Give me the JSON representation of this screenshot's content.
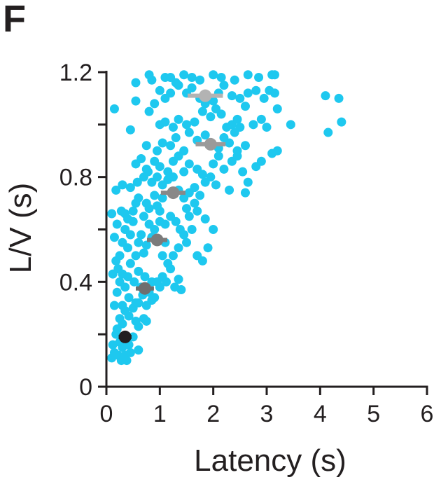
{
  "panel_label": "F",
  "chart_data": {
    "type": "scatter",
    "xlabel": "Latency (s)",
    "ylabel": "L/V (s)",
    "xlim": [
      0,
      6
    ],
    "ylim": [
      0,
      1.2
    ],
    "x_ticks": [
      0,
      1,
      2,
      3,
      4,
      5,
      6
    ],
    "x_tick_labels": [
      "0",
      "1",
      "2",
      "3",
      "4",
      "5",
      "6"
    ],
    "y_ticks": [
      0,
      0.4,
      0.8,
      1.2
    ],
    "y_tick_labels": [
      "0",
      "0.4",
      "0.8",
      "1.2"
    ],
    "grid": false,
    "colors": {
      "points": "#1ec8ef",
      "axis": "#231f20"
    },
    "series": [
      {
        "points": [
          [
            0.1,
            0.11
          ],
          [
            0.12,
            0.16
          ],
          [
            0.15,
            0.13
          ],
          [
            0.18,
            0.2
          ],
          [
            0.22,
            0.12
          ],
          [
            0.25,
            0.17
          ],
          [
            0.28,
            0.1
          ],
          [
            0.3,
            0.15
          ],
          [
            0.35,
            0.12
          ],
          [
            0.38,
            0.1
          ],
          [
            0.42,
            0.16
          ],
          [
            0.45,
            0.13
          ],
          [
            0.5,
            0.19
          ],
          [
            0.6,
            0.14
          ],
          [
            0.2,
            0.22
          ],
          [
            0.25,
            0.26
          ],
          [
            0.3,
            0.24
          ],
          [
            0.35,
            0.29
          ],
          [
            0.42,
            0.27
          ],
          [
            0.5,
            0.3
          ],
          [
            0.55,
            0.25
          ],
          [
            0.6,
            0.23
          ],
          [
            0.7,
            0.26
          ],
          [
            0.75,
            0.25
          ],
          [
            0.3,
            0.31
          ],
          [
            0.42,
            0.34
          ],
          [
            0.55,
            0.32
          ],
          [
            0.15,
            0.31
          ],
          [
            0.2,
            0.36
          ],
          [
            0.25,
            0.4
          ],
          [
            0.3,
            0.43
          ],
          [
            0.35,
            0.38
          ],
          [
            0.4,
            0.42
          ],
          [
            0.45,
            0.47
          ],
          [
            0.52,
            0.4
          ],
          [
            0.6,
            0.44
          ],
          [
            0.65,
            0.38
          ],
          [
            0.72,
            0.42
          ],
          [
            0.8,
            0.36
          ],
          [
            0.85,
            0.4
          ],
          [
            0.9,
            0.34
          ],
          [
            0.12,
            0.43
          ],
          [
            0.18,
            0.48
          ],
          [
            0.22,
            0.45
          ],
          [
            0.6,
            0.32
          ],
          [
            0.68,
            0.35
          ],
          [
            0.75,
            0.31
          ],
          [
            0.85,
            0.33
          ],
          [
            0.95,
            0.4
          ],
          [
            1.0,
            0.38
          ],
          [
            1.05,
            0.42
          ],
          [
            1.12,
            0.4
          ],
          [
            1.2,
            0.45
          ],
          [
            1.28,
            0.38
          ],
          [
            1.35,
            0.41
          ],
          [
            1.4,
            0.37
          ],
          [
            0.25,
            0.5
          ],
          [
            0.3,
            0.55
          ],
          [
            0.35,
            0.6
          ],
          [
            0.4,
            0.53
          ],
          [
            0.45,
            0.58
          ],
          [
            0.5,
            0.63
          ],
          [
            0.55,
            0.5
          ],
          [
            0.6,
            0.55
          ],
          [
            0.65,
            0.58
          ],
          [
            0.7,
            0.51
          ],
          [
            0.75,
            0.54
          ],
          [
            0.8,
            0.62
          ],
          [
            0.85,
            0.57
          ],
          [
            0.9,
            0.6
          ],
          [
            1.0,
            0.63
          ],
          [
            1.05,
            0.5
          ],
          [
            1.1,
            0.55
          ],
          [
            1.15,
            0.47
          ],
          [
            1.25,
            0.5
          ],
          [
            1.35,
            0.53
          ],
          [
            0.15,
            0.57
          ],
          [
            0.2,
            0.62
          ],
          [
            0.28,
            0.67
          ],
          [
            0.35,
            0.66
          ],
          [
            0.4,
            0.64
          ],
          [
            0.5,
            0.67
          ],
          [
            0.55,
            0.7
          ],
          [
            0.6,
            0.72
          ],
          [
            0.7,
            0.65
          ],
          [
            0.75,
            0.7
          ],
          [
            0.8,
            0.68
          ],
          [
            0.9,
            0.73
          ],
          [
            0.95,
            0.69
          ],
          [
            1.0,
            0.67
          ],
          [
            1.05,
            0.72
          ],
          [
            1.1,
            0.62
          ],
          [
            1.2,
            0.65
          ],
          [
            1.3,
            0.63
          ],
          [
            1.38,
            0.6
          ],
          [
            1.45,
            0.58
          ],
          [
            1.5,
            0.55
          ],
          [
            1.55,
            0.65
          ],
          [
            1.6,
            0.6
          ],
          [
            1.7,
            0.5
          ],
          [
            1.8,
            0.48
          ],
          [
            1.9,
            0.53
          ],
          [
            0.1,
            0.66
          ],
          [
            0.18,
            0.75
          ],
          [
            0.3,
            0.77
          ],
          [
            0.45,
            0.76
          ],
          [
            0.58,
            0.78
          ],
          [
            0.7,
            0.8
          ],
          [
            0.78,
            0.82
          ],
          [
            0.85,
            0.78
          ],
          [
            0.95,
            0.8
          ],
          [
            1.05,
            0.77
          ],
          [
            1.15,
            0.79
          ],
          [
            1.25,
            0.8
          ],
          [
            1.35,
            0.75
          ],
          [
            1.45,
            0.72
          ],
          [
            1.55,
            0.74
          ],
          [
            1.65,
            0.76
          ],
          [
            1.75,
            0.73
          ],
          [
            1.85,
            0.78
          ],
          [
            1.95,
            0.8
          ],
          [
            2.05,
            0.77
          ],
          [
            1.7,
            0.67
          ],
          [
            1.85,
            0.64
          ],
          [
            2.0,
            0.6
          ],
          [
            1.5,
            0.68
          ],
          [
            1.65,
            0.7
          ],
          [
            0.55,
            0.85
          ],
          [
            0.65,
            0.87
          ],
          [
            0.75,
            0.83
          ],
          [
            0.9,
            0.86
          ],
          [
            1.0,
            0.84
          ],
          [
            1.15,
            0.82
          ],
          [
            1.25,
            0.86
          ],
          [
            1.35,
            0.88
          ],
          [
            1.45,
            0.82
          ],
          [
            1.55,
            0.85
          ],
          [
            1.7,
            0.83
          ],
          [
            1.8,
            0.81
          ],
          [
            2.0,
            0.85
          ],
          [
            2.1,
            0.88
          ],
          [
            2.2,
            0.83
          ],
          [
            2.35,
            0.86
          ],
          [
            2.45,
            0.88
          ],
          [
            2.55,
            0.82
          ],
          [
            2.65,
            0.78
          ],
          [
            2.8,
            0.84
          ],
          [
            2.9,
            0.86
          ],
          [
            3.1,
            0.89
          ],
          [
            3.2,
            0.9
          ],
          [
            2.6,
            0.74
          ],
          [
            2.3,
            0.75
          ],
          [
            0.75,
            0.92
          ],
          [
            0.95,
            0.9
          ],
          [
            1.05,
            0.93
          ],
          [
            1.2,
            0.92
          ],
          [
            1.3,
            0.95
          ],
          [
            1.45,
            0.9
          ],
          [
            1.55,
            0.97
          ],
          [
            1.7,
            0.94
          ],
          [
            1.85,
            0.96
          ],
          [
            2.1,
            0.91
          ],
          [
            2.2,
            0.95
          ],
          [
            2.3,
            0.93
          ],
          [
            2.4,
            0.97
          ],
          [
            2.5,
            0.99
          ],
          [
            2.6,
            0.92
          ],
          [
            2.45,
            0.9
          ],
          [
            0.45,
            0.98
          ],
          [
            1.0,
            1.0
          ],
          [
            1.1,
            1.01
          ],
          [
            1.25,
            0.99
          ],
          [
            1.35,
            1.02
          ],
          [
            1.5,
            1.0
          ],
          [
            1.65,
            1.01
          ],
          [
            1.8,
            1.05
          ],
          [
            1.95,
            1.03
          ],
          [
            2.05,
            1.06
          ],
          [
            2.15,
            1.04
          ],
          [
            2.25,
            0.99
          ],
          [
            2.35,
            1.0
          ],
          [
            2.45,
            1.02
          ],
          [
            2.6,
            1.07
          ],
          [
            2.75,
            1.0
          ],
          [
            2.9,
            1.02
          ],
          [
            3.0,
            0.99
          ],
          [
            3.2,
            1.06
          ],
          [
            3.45,
            1.0
          ],
          [
            0.15,
            1.06
          ],
          [
            0.55,
            1.09
          ],
          [
            0.8,
            1.05
          ],
          [
            0.9,
            1.08
          ],
          [
            1.0,
            1.13
          ],
          [
            1.1,
            1.1
          ],
          [
            1.2,
            1.12
          ],
          [
            1.35,
            1.15
          ],
          [
            1.5,
            1.12
          ],
          [
            1.6,
            1.14
          ],
          [
            1.75,
            1.1
          ],
          [
            1.85,
            1.08
          ],
          [
            2.0,
            1.09
          ],
          [
            2.1,
            1.12
          ],
          [
            2.2,
            1.15
          ],
          [
            2.35,
            1.11
          ],
          [
            2.5,
            1.1
          ],
          [
            2.65,
            1.12
          ],
          [
            2.8,
            1.13
          ],
          [
            2.95,
            1.1
          ],
          [
            3.05,
            1.13
          ],
          [
            3.15,
            1.12
          ],
          [
            0.55,
            1.16
          ],
          [
            0.8,
            1.19
          ],
          [
            0.85,
            1.17
          ],
          [
            1.1,
            1.18
          ],
          [
            1.2,
            1.18
          ],
          [
            1.3,
            1.16
          ],
          [
            1.45,
            1.19
          ],
          [
            1.6,
            1.18
          ],
          [
            1.75,
            1.17
          ],
          [
            2.0,
            1.19
          ],
          [
            2.15,
            1.18
          ],
          [
            2.4,
            1.17
          ],
          [
            2.65,
            1.19
          ],
          [
            2.85,
            1.18
          ],
          [
            3.1,
            1.19
          ],
          [
            3.15,
            1.19
          ],
          [
            4.1,
            1.11
          ],
          [
            4.35,
            1.1
          ],
          [
            4.15,
            0.97
          ],
          [
            4.4,
            1.01
          ]
        ]
      }
    ],
    "summary_points": [
      {
        "x": 0.35,
        "y": 0.19,
        "x_err": 0.12,
        "color": "#231f20"
      },
      {
        "x": 0.72,
        "y": 0.375,
        "x_err": 0.17,
        "color": "#6e6e6e"
      },
      {
        "x": 0.95,
        "y": 0.56,
        "x_err": 0.19,
        "color": "#7b7b7b"
      },
      {
        "x": 1.25,
        "y": 0.74,
        "x_err": 0.23,
        "color": "#888888"
      },
      {
        "x": 1.95,
        "y": 0.925,
        "x_err": 0.28,
        "color": "#9a9a9a"
      },
      {
        "x": 1.85,
        "y": 1.11,
        "x_err": 0.33,
        "color": "#b3b3b3"
      }
    ]
  }
}
